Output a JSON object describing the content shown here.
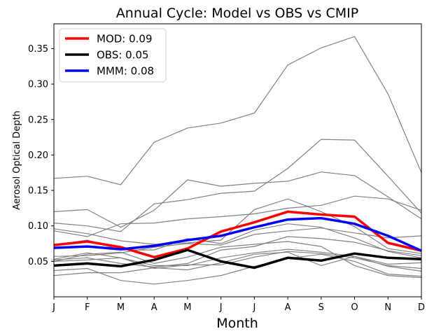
{
  "chart_data": {
    "type": "line",
    "title": "Annual Cycle: Model vs OBS vs CMIP",
    "xlabel": "Month",
    "ylabel": "Aerosol Optical Depth",
    "categories": [
      "J",
      "F",
      "M",
      "A",
      "M",
      "J",
      "J",
      "A",
      "S",
      "O",
      "N",
      "D"
    ],
    "xlim": [
      0,
      11
    ],
    "ylim": [
      0.0,
      0.385
    ],
    "yticks": [
      0.05,
      0.1,
      0.15,
      0.2,
      0.25,
      0.3,
      0.35
    ],
    "ytick_labels": [
      "0.05",
      "0.10",
      "0.15",
      "0.20",
      "0.25",
      "0.30",
      "0.35"
    ],
    "grid": false,
    "legend_position": "top-left",
    "series": [
      {
        "name": "MOD: 0.09",
        "color": "#ff0000",
        "legend": true,
        "values": [
          0.073,
          0.078,
          0.07,
          0.056,
          0.068,
          0.092,
          0.105,
          0.12,
          0.116,
          0.113,
          0.076,
          0.065
        ]
      },
      {
        "name": "OBS: 0.05",
        "color": "#000000",
        "legend": true,
        "values": [
          0.044,
          0.047,
          0.043,
          0.052,
          0.066,
          0.05,
          0.041,
          0.055,
          0.051,
          0.061,
          0.055,
          0.053
        ]
      },
      {
        "name": "MMM: 0.08",
        "color": "#0000ff",
        "legend": true,
        "values": [
          0.069,
          0.071,
          0.067,
          0.072,
          0.08,
          0.086,
          0.098,
          0.109,
          0.111,
          0.103,
          0.086,
          0.065
        ]
      }
    ],
    "cmip_series": {
      "color": "#808080",
      "lines": [
        [
          0.167,
          0.17,
          0.158,
          0.218,
          0.238,
          0.245,
          0.259,
          0.327,
          0.351,
          0.367,
          0.286,
          0.175
        ],
        [
          0.12,
          0.123,
          0.098,
          0.122,
          0.165,
          0.156,
          0.16,
          0.163,
          0.176,
          0.171,
          0.141,
          0.11
        ],
        [
          0.104,
          0.1,
          0.092,
          0.131,
          0.137,
          0.146,
          0.149,
          0.181,
          0.222,
          0.221,
          0.17,
          0.118
        ],
        [
          0.093,
          0.085,
          0.103,
          0.104,
          0.11,
          0.113,
          0.117,
          0.125,
          0.129,
          0.142,
          0.138,
          0.122
        ],
        [
          0.096,
          0.089,
          0.079,
          0.074,
          0.076,
          0.08,
          0.123,
          0.138,
          0.12,
          0.099,
          0.068,
          0.061
        ],
        [
          0.073,
          0.08,
          0.066,
          0.066,
          0.082,
          0.075,
          0.094,
          0.103,
          0.098,
          0.083,
          0.064,
          0.055
        ],
        [
          0.057,
          0.058,
          0.062,
          0.07,
          0.075,
          0.073,
          0.088,
          0.093,
          0.097,
          0.09,
          0.083,
          0.086
        ],
        [
          0.052,
          0.055,
          0.047,
          0.042,
          0.047,
          0.066,
          0.071,
          0.085,
          0.082,
          0.077,
          0.065,
          0.058
        ],
        [
          0.053,
          0.062,
          0.055,
          0.044,
          0.044,
          0.055,
          0.062,
          0.067,
          0.063,
          0.057,
          0.046,
          0.048
        ],
        [
          0.05,
          0.052,
          0.055,
          0.04,
          0.045,
          0.045,
          0.056,
          0.064,
          0.061,
          0.055,
          0.044,
          0.04
        ],
        [
          0.037,
          0.04,
          0.023,
          0.018,
          0.023,
          0.03,
          0.043,
          0.054,
          0.06,
          0.05,
          0.032,
          0.029
        ],
        [
          0.03,
          0.034,
          0.034,
          0.041,
          0.038,
          0.048,
          0.06,
          0.063,
          0.044,
          0.057,
          0.043,
          0.036
        ],
        [
          0.05,
          0.06,
          0.063,
          0.047,
          0.056,
          0.07,
          0.074,
          0.078,
          0.071,
          0.044,
          0.03,
          0.027
        ]
      ]
    }
  }
}
